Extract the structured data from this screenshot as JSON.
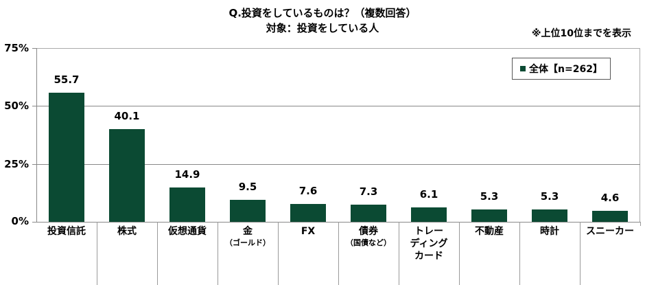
{
  "header": {
    "title_line1": "Q.投資をしているものは？（複数回答）",
    "title_line2": "対象：投資をしている人",
    "note": "※上位10位までを表示"
  },
  "legend": {
    "label": "全体【n=262】",
    "color": "#0b4a33"
  },
  "y_axis": {
    "ticks": [
      "75%",
      "50%",
      "25%",
      "0%"
    ]
  },
  "categories": [
    {
      "label": "投資信託",
      "sub": "",
      "value": "55.7"
    },
    {
      "label": "株式",
      "sub": "",
      "value": "40.1"
    },
    {
      "label": "仮想通貨",
      "sub": "",
      "value": "14.9"
    },
    {
      "label": "金",
      "sub": "（ゴールド）",
      "value": "9.5"
    },
    {
      "label": "FX",
      "sub": "",
      "value": "7.6"
    },
    {
      "label": "債券",
      "sub": "（国債など）",
      "value": "7.3"
    },
    {
      "label": "トレー\nディング\nカード",
      "sub": "",
      "value": "6.1"
    },
    {
      "label": "不動産",
      "sub": "",
      "value": "5.3"
    },
    {
      "label": "時計",
      "sub": "",
      "value": "5.3"
    },
    {
      "label": "スニーカー",
      "sub": "",
      "value": "4.6"
    }
  ],
  "chart_data": {
    "type": "bar",
    "title": "Q.投資をしているものは？（複数回答） 対象：投資をしている人",
    "subtitle": "※上位10位までを表示",
    "categories": [
      "投資信託",
      "株式",
      "仮想通貨",
      "金（ゴールド）",
      "FX",
      "債券（国債など）",
      "トレーディングカード",
      "不動産",
      "時計",
      "スニーカー"
    ],
    "series": [
      {
        "name": "全体【n=262】",
        "values": [
          55.7,
          40.1,
          14.9,
          9.5,
          7.6,
          7.3,
          6.1,
          5.3,
          5.3,
          4.6
        ],
        "color": "#0b4a33"
      }
    ],
    "xlabel": "",
    "ylabel": "",
    "ylim": [
      0,
      75
    ],
    "yticks": [
      0,
      25,
      50,
      75
    ],
    "ytick_labels": [
      "0%",
      "25%",
      "50%",
      "75%"
    ],
    "grid": true,
    "legend_position": "top-right"
  }
}
